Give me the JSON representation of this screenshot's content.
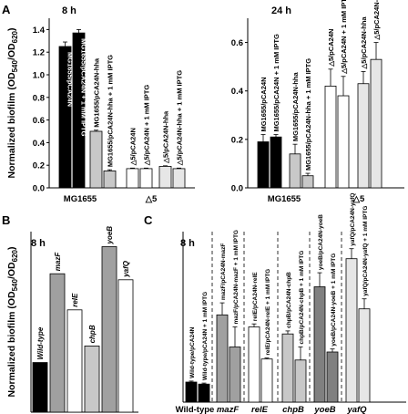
{
  "chart_data": [
    {
      "panel": "A",
      "title": "8 h",
      "type": "bar",
      "ylabel": "Normalized biofilm (OD540/OD620)",
      "ylim": [
        0,
        1.5
      ],
      "yticks": [
        "0.0",
        "0.2",
        "0.4",
        "0.6",
        "0.8",
        "1.0",
        "1.2",
        "1.4"
      ],
      "group_labels": [
        "MG1655",
        "△5"
      ],
      "bars": [
        {
          "label": "MG1655/pCA24N",
          "value": 1.25,
          "err": 0.04,
          "color": "#000000",
          "group": 0
        },
        {
          "label": "MG1655/pCA24N + 1 mM IPTG",
          "value": 1.37,
          "err": 0.03,
          "color": "#000000",
          "group": 0
        },
        {
          "label": "MG1655/pCA24N-hha",
          "value": 0.5,
          "err": 0.01,
          "color": "#c8c8c8",
          "group": 0
        },
        {
          "label": "MG1655/pCA24N-hha + 1 mM IPTG",
          "value": 0.15,
          "err": 0.01,
          "color": "#c8c8c8",
          "group": 0
        },
        {
          "label": "△5/pCA24N",
          "value": 0.17,
          "err": 0.005,
          "color": "#ffffff",
          "group": 1
        },
        {
          "label": "△5/pCA24N + 1 mM IPTG",
          "value": 0.17,
          "err": 0.005,
          "color": "#ffffff",
          "group": 1
        },
        {
          "label": "△5/pCA24N-hha",
          "value": 0.19,
          "err": 0.005,
          "color": "#e6e6e6",
          "group": 1
        },
        {
          "label": "△5/pCA24N-hha + 1 mM IPTG",
          "value": 0.17,
          "err": 0.005,
          "color": "#e6e6e6",
          "group": 1
        }
      ]
    },
    {
      "panel": "A",
      "title": "24 h",
      "type": "bar",
      "ylim": [
        0,
        0.7
      ],
      "yticks": [
        "0.0",
        "0.2",
        "0.4",
        "0.6"
      ],
      "group_labels": [
        "MG1655",
        "△5"
      ],
      "bars": [
        {
          "label": "MG1655/pCA24N",
          "value": 0.19,
          "err": 0.03,
          "color": "#000000",
          "group": 0
        },
        {
          "label": "MG1655/pCA24N + 1 mM IPTG",
          "value": 0.21,
          "err": 0.01,
          "color": "#000000",
          "group": 0
        },
        {
          "label": "MG1655/pCA24N-hha",
          "value": 0.14,
          "err": 0.04,
          "color": "#c8c8c8",
          "group": 0
        },
        {
          "label": "MG1655/pCA24N-hha + 1 mM IPTG",
          "value": 0.05,
          "err": 0.01,
          "color": "#c8c8c8",
          "group": 0
        },
        {
          "label": "△5/pCA24N",
          "value": 0.42,
          "err": 0.07,
          "color": "#ffffff",
          "group": 1
        },
        {
          "label": "△5/pCA24N + 1 mM IPTG",
          "value": 0.38,
          "err": 0.08,
          "color": "#ffffff",
          "group": 1
        },
        {
          "label": "△5/pCA24N-hha",
          "value": 0.43,
          "err": 0.05,
          "color": "#e6e6e6",
          "group": 1
        },
        {
          "label": "△5/pCA24N-hha + 1 mM IPTG",
          "value": 0.53,
          "err": 0.07,
          "color": "#e6e6e6",
          "group": 1
        }
      ]
    },
    {
      "panel": "B",
      "title": "8 h",
      "type": "bar",
      "ylabel": "Normalized biofilm (OD540/OD620)",
      "ylim": [
        0,
        1.2
      ],
      "bars": [
        {
          "label": "Wild-type",
          "value": 0.33,
          "color": "#000000"
        },
        {
          "label": "mazF",
          "value": 0.92,
          "color": "#a0a0a0"
        },
        {
          "label": "relE",
          "value": 0.68,
          "color": "#ffffff"
        },
        {
          "label": "chpB",
          "value": 0.44,
          "color": "#c8c8c8"
        },
        {
          "label": "yoeB",
          "value": 1.1,
          "color": "#a0a0a0"
        },
        {
          "label": "yafQ",
          "value": 0.88,
          "color": "#ffffff"
        }
      ]
    },
    {
      "panel": "C",
      "title": "8 h",
      "type": "bar",
      "ylim": [
        0,
        1.7
      ],
      "group_labels": [
        "Wild-type",
        "mazF",
        "relE",
        "chpB",
        "yoeB",
        "yafQ"
      ],
      "bars": [
        {
          "label": "Wild-type/pCA24N",
          "value": 0.2,
          "err": 0.01,
          "color": "#000000",
          "group": 0
        },
        {
          "label": "Wild-type/pCA24N + 1 mM IPTG",
          "value": 0.18,
          "err": 0.01,
          "color": "#000000",
          "group": 0
        },
        {
          "label": "mazF/pCA24N-mazF",
          "value": 0.87,
          "err": 0.12,
          "color": "#a0a0a0",
          "group": 1
        },
        {
          "label": "mazF/pCA24N-mazF + 1 mM IPTG",
          "value": 0.55,
          "err": 0.2,
          "color": "#a0a0a0",
          "group": 1
        },
        {
          "label": "relE/pCA24N-relE",
          "value": 0.75,
          "err": 0.03,
          "color": "#ffffff",
          "group": 2
        },
        {
          "label": "relE/pCA24N-relE + 1 mM IPTG",
          "value": 0.43,
          "err": 0.01,
          "color": "#ffffff",
          "group": 2
        },
        {
          "label": "chpB/pCA24N-chpB",
          "value": 0.68,
          "err": 0.03,
          "color": "#c8c8c8",
          "group": 3
        },
        {
          "label": "chpB/pCA24N-chpB + 1 mM IPTG",
          "value": 0.42,
          "err": 0.13,
          "color": "#c8c8c8",
          "group": 3
        },
        {
          "label": "yoeB/pCA24N-yoeB",
          "value": 1.15,
          "err": 0.14,
          "color": "#808080",
          "group": 4
        },
        {
          "label": "yoeB/pCA24N-yoeB + 1 mM IPTG",
          "value": 0.5,
          "err": 0.03,
          "color": "#808080",
          "group": 4
        },
        {
          "label": "yafQ/pCA24N-yafQ",
          "value": 1.43,
          "err": 0.1,
          "color": "#e6e6e6",
          "group": 5
        },
        {
          "label": "yafQ/pCA24N-yafQ + 1 mM IPTG",
          "value": 0.93,
          "err": 0.1,
          "color": "#e6e6e6",
          "group": 5
        }
      ]
    }
  ],
  "panel_labels": [
    "A",
    "B",
    "C"
  ]
}
